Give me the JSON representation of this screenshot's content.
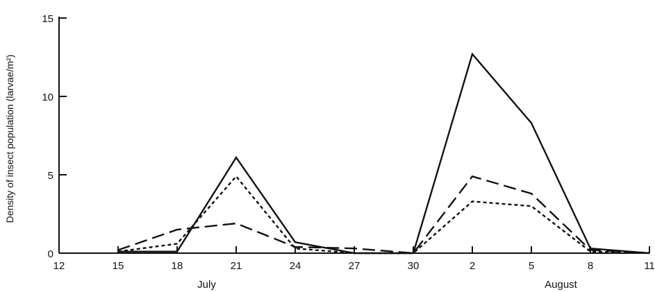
{
  "chart_data": {
    "type": "line",
    "title": "",
    "xlabel": "",
    "ylabel": "Density of insect population (larvae/m²)",
    "ylim": [
      0,
      15
    ],
    "yticks": [
      0,
      5,
      10,
      15
    ],
    "xlim": [
      0,
      30
    ],
    "xticks": [
      {
        "pos": 0,
        "label": "12"
      },
      {
        "pos": 3,
        "label": "15"
      },
      {
        "pos": 6,
        "label": "18"
      },
      {
        "pos": 9,
        "label": "21"
      },
      {
        "pos": 12,
        "label": "24"
      },
      {
        "pos": 15,
        "label": "27"
      },
      {
        "pos": 18,
        "label": "30"
      },
      {
        "pos": 21,
        "label": "2"
      },
      {
        "pos": 24,
        "label": "5"
      },
      {
        "pos": 27,
        "label": "8"
      },
      {
        "pos": 30,
        "label": "11"
      }
    ],
    "month_labels": [
      {
        "label": "July",
        "pos": 7.5
      },
      {
        "label": "August",
        "pos": 25.5
      }
    ],
    "legend": "none",
    "grid": false,
    "series": [
      {
        "style": "solid",
        "color": "#111111",
        "x": [
          3,
          6,
          9,
          12,
          15,
          18,
          21,
          24,
          27,
          30
        ],
        "y": [
          0.1,
          0.1,
          6.1,
          0.7,
          0.0,
          0.0,
          12.7,
          8.3,
          0.3,
          0.0
        ]
      },
      {
        "style": "short-dashed",
        "color": "#111111",
        "x": [
          3,
          6,
          9,
          12,
          15,
          18,
          21,
          24,
          27,
          30
        ],
        "y": [
          0.1,
          0.6,
          4.9,
          0.3,
          0.0,
          0.0,
          3.3,
          3.0,
          0.1,
          0.0
        ]
      },
      {
        "style": "long-dashed",
        "color": "#111111",
        "x": [
          3,
          6,
          9,
          12,
          15,
          18,
          21,
          24,
          27,
          30
        ],
        "y": [
          0.2,
          1.5,
          1.9,
          0.4,
          0.3,
          0.0,
          4.9,
          3.8,
          0.2,
          0.0
        ]
      }
    ]
  }
}
